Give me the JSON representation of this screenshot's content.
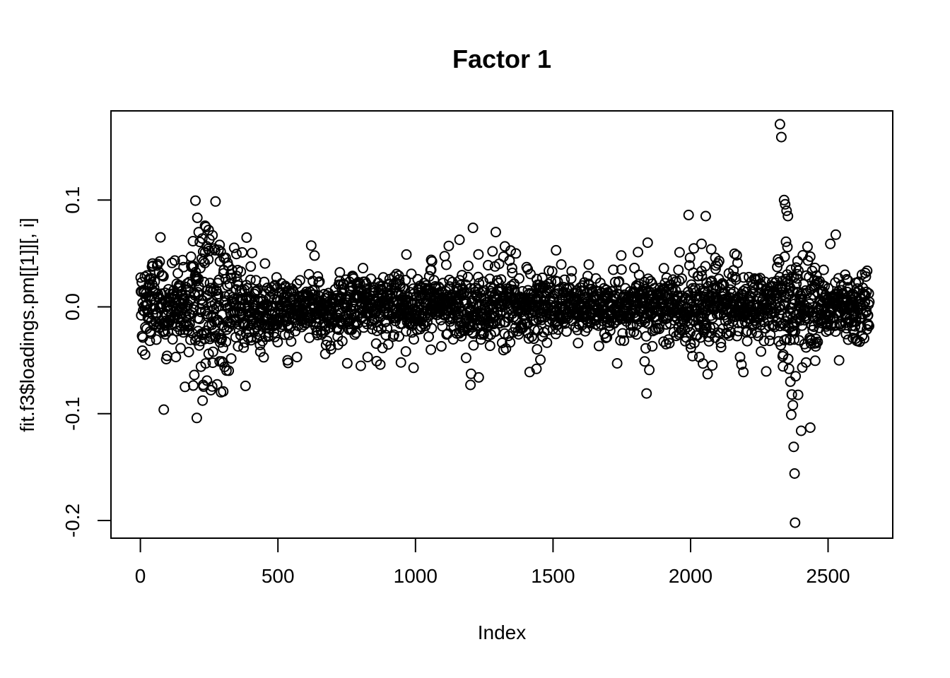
{
  "chart_data": {
    "type": "scatter",
    "title": "Factor 1",
    "xlabel": "Index",
    "ylabel": "fit.f3$loadings.pm[[1]][, i]",
    "n_points": 2650,
    "xlim": [
      -107,
      2735
    ],
    "ylim": [
      -0.2165,
      0.1835
    ],
    "x_ticks": [
      {
        "value": 0,
        "label": "0"
      },
      {
        "value": 500,
        "label": "500"
      },
      {
        "value": 1000,
        "label": "1000"
      },
      {
        "value": 1500,
        "label": "1500"
      },
      {
        "value": 2000,
        "label": "2000"
      },
      {
        "value": 2500,
        "label": "2500"
      }
    ],
    "y_ticks": [
      {
        "value": -0.2,
        "label": "-0.2"
      },
      {
        "value": -0.1,
        "label": "-0.1"
      },
      {
        "value": 0.0,
        "label": "0.0"
      },
      {
        "value": 0.1,
        "label": "0.1"
      }
    ],
    "grid": false,
    "legend": null,
    "marker": {
      "shape": "open-circle",
      "radius_px": 6.5,
      "stroke_px": 2
    },
    "colors": {
      "stroke": "#000000",
      "background": "#ffffff"
    },
    "noise": {
      "seed": 20240917,
      "base_sd": 0.0125,
      "tail_fraction": 0.16,
      "tail_sd": 0.0255,
      "regions": [
        {
          "from": 1,
          "to": 460,
          "scale": 1.45
        },
        {
          "from": 180,
          "to": 330,
          "scale": 1.85
        },
        {
          "from": 1150,
          "to": 1360,
          "scale": 1.25
        },
        {
          "from": 1550,
          "to": 1800,
          "scale": 0.85
        },
        {
          "from": 1950,
          "to": 2150,
          "scale": 1.4
        },
        {
          "from": 2300,
          "to": 2460,
          "scale": 1.7
        },
        {
          "from": 2550,
          "to": 2650,
          "scale": 1.15
        }
      ]
    },
    "outliers": [
      [
        200,
        0.0995
      ],
      [
        212,
        0.07
      ],
      [
        225,
        0.064
      ],
      [
        248,
        0.072
      ],
      [
        262,
        0.067
      ],
      [
        235,
        0.051
      ],
      [
        272,
        0.053
      ],
      [
        288,
        0.058
      ],
      [
        310,
        0.046
      ],
      [
        205,
        -0.104
      ],
      [
        228,
        -0.073
      ],
      [
        242,
        -0.069
      ],
      [
        256,
        -0.078
      ],
      [
        220,
        -0.056
      ],
      [
        300,
        -0.052
      ],
      [
        436,
        -0.042
      ],
      [
        569,
        -0.047
      ],
      [
        633,
        0.048
      ],
      [
        672,
        -0.044
      ],
      [
        826,
        -0.047
      ],
      [
        872,
        -0.054
      ],
      [
        947,
        -0.052
      ],
      [
        967,
        0.049
      ],
      [
        993,
        -0.057
      ],
      [
        1057,
        0.044
      ],
      [
        1209,
        0.074
      ],
      [
        1200,
        -0.073
      ],
      [
        1230,
        -0.066
      ],
      [
        1280,
        0.052
      ],
      [
        1320,
        0.047
      ],
      [
        1365,
        0.05
      ],
      [
        1415,
        -0.061
      ],
      [
        1440,
        -0.058
      ],
      [
        1833,
        -0.051
      ],
      [
        1840,
        -0.081
      ],
      [
        1850,
        -0.059
      ],
      [
        1998,
        0.046
      ],
      [
        2032,
        -0.047
      ],
      [
        2040,
        0.059
      ],
      [
        2045,
        -0.053
      ],
      [
        2055,
        0.085
      ],
      [
        2062,
        -0.063
      ],
      [
        2075,
        0.054
      ],
      [
        2090,
        0.046
      ],
      [
        2180,
        -0.047
      ],
      [
        2185,
        -0.054
      ],
      [
        2192,
        -0.061
      ],
      [
        2325,
        0.171
      ],
      [
        2330,
        0.159
      ],
      [
        2340,
        0.1
      ],
      [
        2344,
        0.096
      ],
      [
        2349,
        0.09
      ],
      [
        2354,
        0.085
      ],
      [
        2347,
        0.061
      ],
      [
        2352,
        0.056
      ],
      [
        2342,
        0.047
      ],
      [
        2358,
        -0.058
      ],
      [
        2363,
        -0.07
      ],
      [
        2368,
        -0.082
      ],
      [
        2372,
        -0.092
      ],
      [
        2366,
        -0.101
      ],
      [
        2375,
        -0.131
      ],
      [
        2378,
        -0.156
      ],
      [
        2380,
        -0.202
      ],
      [
        2402,
        -0.116
      ],
      [
        2435,
        -0.113
      ],
      [
        2420,
        -0.052
      ],
      [
        2508,
        0.059
      ],
      [
        2540,
        -0.05
      ]
    ]
  }
}
